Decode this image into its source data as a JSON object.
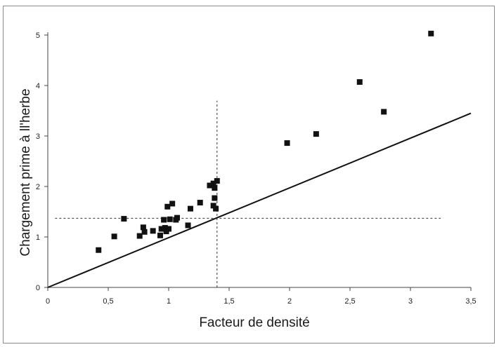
{
  "chart_data": {
    "type": "scatter",
    "title": "",
    "xlabel": "Facteur de densité",
    "ylabel": "Chargement prime à ll'herbe",
    "xlim": [
      0,
      3.5
    ],
    "ylim": [
      0,
      5
    ],
    "xticks": [
      {
        "value": 0,
        "label": "0"
      },
      {
        "value": 0.5,
        "label": "0,5"
      },
      {
        "value": 1,
        "label": "1"
      },
      {
        "value": 1.5,
        "label": "1,5"
      },
      {
        "value": 2,
        "label": "2"
      },
      {
        "value": 2.5,
        "label": "2,5"
      },
      {
        "value": 3,
        "label": "3"
      },
      {
        "value": 3.5,
        "label": "3,5"
      }
    ],
    "yticks": [
      {
        "value": 0,
        "label": "0"
      },
      {
        "value": 1,
        "label": "1"
      },
      {
        "value": 2,
        "label": "2"
      },
      {
        "value": 3,
        "label": "3"
      },
      {
        "value": 4,
        "label": "4"
      },
      {
        "value": 5,
        "label": "5"
      }
    ],
    "grid": false,
    "legend": "none",
    "marker_color": "#111111",
    "points": [
      {
        "x": 0.42,
        "y": 0.74
      },
      {
        "x": 0.55,
        "y": 1.01
      },
      {
        "x": 0.63,
        "y": 1.36
      },
      {
        "x": 0.76,
        "y": 1.02
      },
      {
        "x": 0.79,
        "y": 1.19
      },
      {
        "x": 0.8,
        "y": 1.1
      },
      {
        "x": 0.87,
        "y": 1.12
      },
      {
        "x": 0.93,
        "y": 1.03
      },
      {
        "x": 0.94,
        "y": 1.16
      },
      {
        "x": 0.96,
        "y": 1.34
      },
      {
        "x": 0.97,
        "y": 1.18
      },
      {
        "x": 0.98,
        "y": 1.11
      },
      {
        "x": 0.99,
        "y": 1.6
      },
      {
        "x": 1.0,
        "y": 1.16
      },
      {
        "x": 1.01,
        "y": 1.35
      },
      {
        "x": 1.03,
        "y": 1.66
      },
      {
        "x": 1.06,
        "y": 1.34
      },
      {
        "x": 1.07,
        "y": 1.38
      },
      {
        "x": 1.16,
        "y": 1.23
      },
      {
        "x": 1.18,
        "y": 1.56
      },
      {
        "x": 1.26,
        "y": 1.68
      },
      {
        "x": 1.34,
        "y": 2.02
      },
      {
        "x": 1.37,
        "y": 1.62
      },
      {
        "x": 1.37,
        "y": 2.06
      },
      {
        "x": 1.38,
        "y": 1.77
      },
      {
        "x": 1.38,
        "y": 1.97
      },
      {
        "x": 1.39,
        "y": 1.56
      },
      {
        "x": 1.4,
        "y": 2.11
      },
      {
        "x": 1.98,
        "y": 2.86
      },
      {
        "x": 2.22,
        "y": 3.04
      },
      {
        "x": 2.58,
        "y": 4.07
      },
      {
        "x": 2.78,
        "y": 3.48
      },
      {
        "x": 3.17,
        "y": 5.03
      }
    ],
    "reference_line": {
      "x": [
        0,
        3.5
      ],
      "y": [
        0,
        3.45
      ]
    },
    "dashed_vertical": {
      "x": 1.4,
      "y": [
        0,
        3.7
      ]
    },
    "dashed_horizontal": {
      "y": 1.37,
      "x": [
        0.06,
        3.25
      ]
    }
  }
}
